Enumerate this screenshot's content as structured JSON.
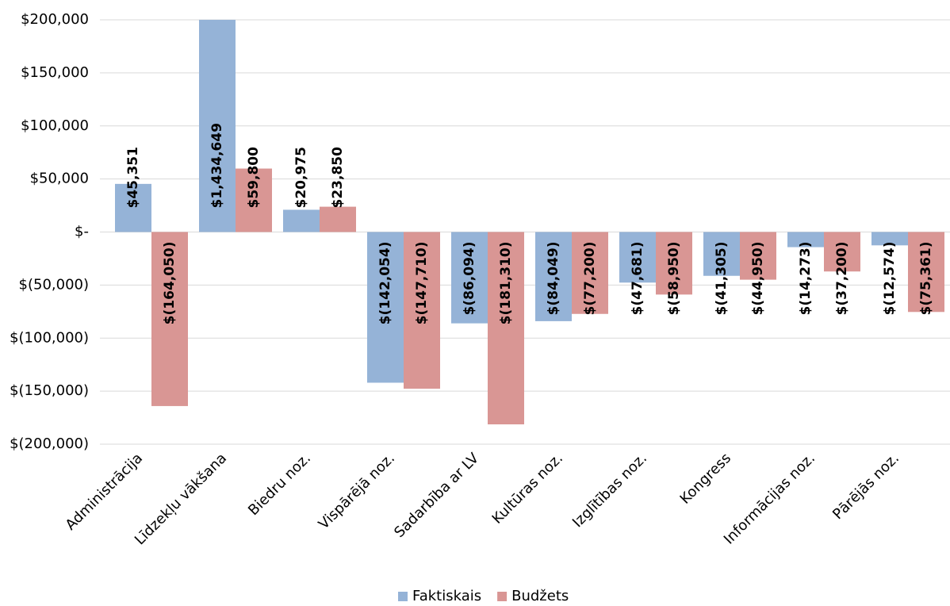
{
  "chart_data": {
    "type": "bar",
    "categories": [
      "Administrācija",
      "Līdzekļu vākšana",
      "Biedru noz.",
      "Vispārējā noz.",
      "Sadarbība ar LV",
      "Kultūras noz.",
      "Izglītības noz.",
      "Kongress",
      "Informācijas noz.",
      "Pārējās noz."
    ],
    "series": [
      {
        "name": "Faktiskais",
        "color": "#95b3d7",
        "values": [
          45351,
          1434649,
          20975,
          -142054,
          -86094,
          -84049,
          -47681,
          -41305,
          -14273,
          -12574
        ],
        "value_labels": [
          "$45,351",
          "$1,434,649",
          "$20,975",
          "$(142,054)",
          "$(86,094)",
          "$(84,049)",
          "$(47,681)",
          "$(41,305)",
          "$(14,273)",
          "$(12,574)"
        ]
      },
      {
        "name": "Budžets",
        "color": "#d99694",
        "values": [
          -164050,
          59800,
          23850,
          -147710,
          -181310,
          -77200,
          -58950,
          -44950,
          -37200,
          -75361
        ],
        "value_labels": [
          "$(164,050)",
          "$59,800",
          "$23,850",
          "$(147,710)",
          "$(181,310)",
          "$(77,200)",
          "$(58,950)",
          "$(44,950)",
          "$(37,200)",
          "$(75,361)"
        ]
      }
    ],
    "ylim": [
      -200000,
      200000
    ],
    "yticks": [
      {
        "value": 200000,
        "label": "$200,000"
      },
      {
        "value": 150000,
        "label": "$150,000"
      },
      {
        "value": 100000,
        "label": "$100,000"
      },
      {
        "value": 50000,
        "label": "$50,000"
      },
      {
        "value": 0,
        "label": "$-"
      },
      {
        "value": -50000,
        "label": "$(50,000)"
      },
      {
        "value": -100000,
        "label": "$(100,000)"
      },
      {
        "value": -150000,
        "label": "$(150,000)"
      },
      {
        "value": -200000,
        "label": "$(200,000)"
      }
    ],
    "grid": true,
    "legend": "bottom"
  }
}
